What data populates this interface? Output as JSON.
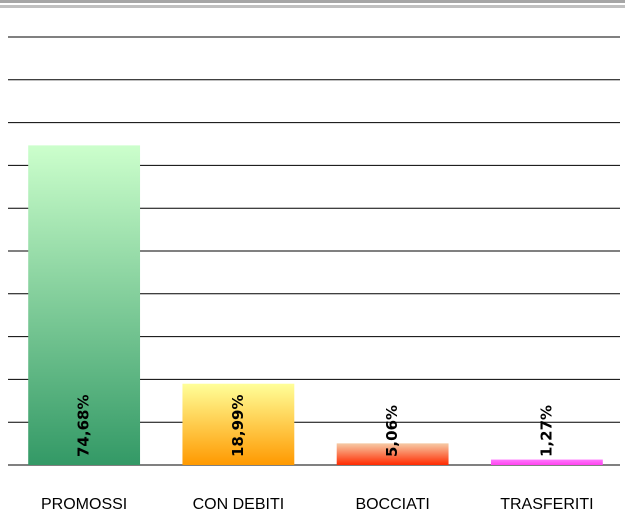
{
  "chart_data": {
    "type": "bar",
    "categories": [
      "PROMOSSI",
      "CON DEBITI",
      "BOCCIATI",
      "TRASFERITI"
    ],
    "values": [
      74.68,
      18.99,
      5.06,
      1.27
    ],
    "value_labels": [
      "74,68%",
      "18,99%",
      "5,06%",
      "1,27%"
    ],
    "colors": [
      [
        "#ccffcc",
        "#339966"
      ],
      [
        "#ffff99",
        "#ff9900"
      ],
      [
        "#f6cba6",
        "#ff2a00"
      ],
      [
        "#ff77ff",
        "#ff44ee"
      ]
    ],
    "ylim": [
      0,
      100
    ],
    "yticks": [
      0,
      10,
      20,
      30,
      40,
      50,
      60,
      70,
      80,
      90,
      100
    ],
    "grid": true
  }
}
